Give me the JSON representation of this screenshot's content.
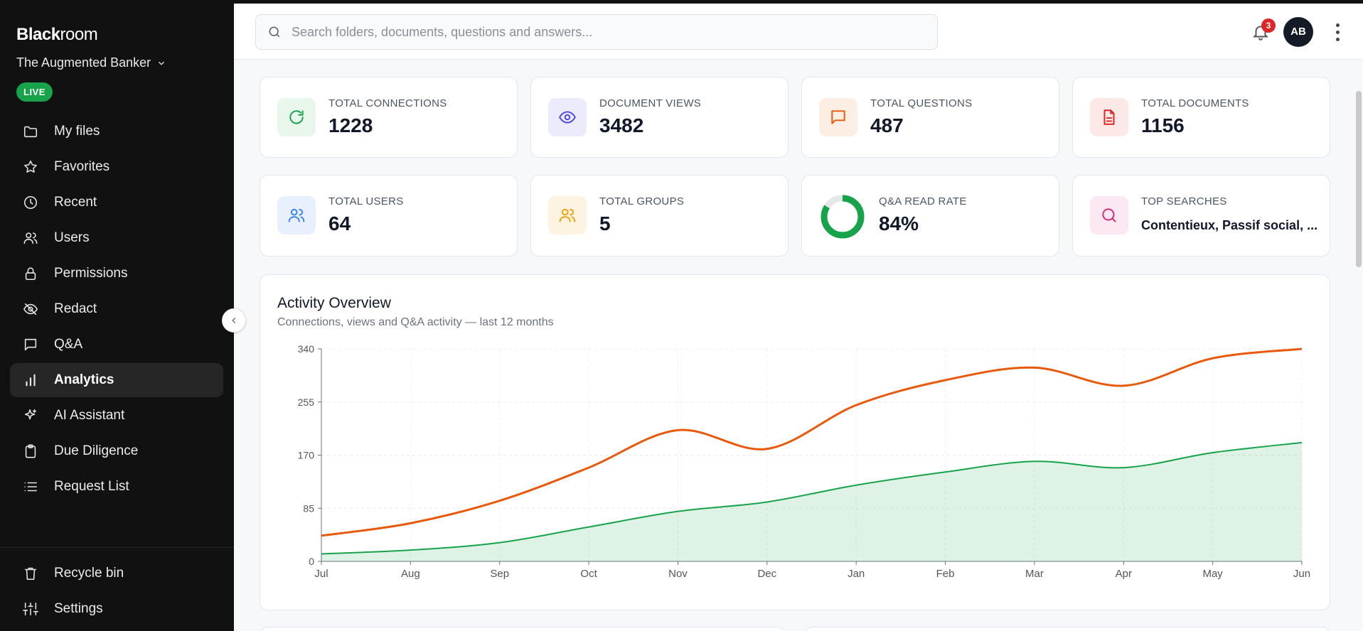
{
  "sidebar": {
    "brand_bold": "Black",
    "brand_light": "room",
    "workspace": "The Augmented Banker",
    "status_badge": "LIVE",
    "items": [
      {
        "label": "My files",
        "icon": "folder-icon"
      },
      {
        "label": "Favorites",
        "icon": "star-icon"
      },
      {
        "label": "Recent",
        "icon": "clock-icon"
      },
      {
        "label": "Users",
        "icon": "users-icon"
      },
      {
        "label": "Permissions",
        "icon": "lock-icon"
      },
      {
        "label": "Redact",
        "icon": "eye-off-icon"
      },
      {
        "label": "Q&A",
        "icon": "message-icon"
      },
      {
        "label": "Analytics",
        "icon": "bar-chart-icon",
        "active": true
      },
      {
        "label": "AI Assistant",
        "icon": "sparkles-icon"
      },
      {
        "label": "Due Diligence",
        "icon": "clipboard-icon"
      },
      {
        "label": "Request List",
        "icon": "list-icon"
      }
    ],
    "bottom_items": [
      {
        "label": "Recycle bin",
        "icon": "trash-icon"
      },
      {
        "label": "Settings",
        "icon": "sliders-icon"
      }
    ]
  },
  "topbar": {
    "search_placeholder": "Search folders, documents, questions and answers...",
    "notification_count": "3",
    "avatar_initials": "AB"
  },
  "stats": [
    {
      "label": "TOTAL CONNECTIONS",
      "value": "1228",
      "icon": "refresh-icon",
      "color": "#16a34a",
      "bg": "#e8f6ec"
    },
    {
      "label": "DOCUMENT VIEWS",
      "value": "3482",
      "icon": "eye-icon",
      "color": "#4f46e5",
      "bg": "#ecebfc"
    },
    {
      "label": "TOTAL QUESTIONS",
      "value": "487",
      "icon": "message-icon",
      "color": "#ea580c",
      "bg": "#fdeee4"
    },
    {
      "label": "TOTAL DOCUMENTS",
      "value": "1156",
      "icon": "file-icon",
      "color": "#dc2626",
      "bg": "#fde8e8"
    },
    {
      "label": "TOTAL USERS",
      "value": "64",
      "icon": "users-icon",
      "color": "#3b82f6",
      "bg": "#e8f0fd"
    },
    {
      "label": "TOTAL GROUPS",
      "value": "5",
      "icon": "users-icon",
      "color": "#f59e0b",
      "bg": "#fdf3e1"
    },
    {
      "label": "Q&A READ RATE",
      "value": "84%",
      "icon": "donut-icon",
      "color": "#16a34a",
      "rate": 0.84
    },
    {
      "label": "TOP SEARCHES",
      "value": "Contentieux, Passif social, ...",
      "icon": "search-icon",
      "color": "#db2777",
      "bg": "#fce8f2"
    }
  ],
  "chart": {
    "title": "Activity Overview",
    "subtitle": "Connections, views and Q&A activity — last 12 months"
  },
  "chart_data": {
    "type": "line",
    "categories": [
      "Jul",
      "Aug",
      "Sep",
      "Oct",
      "Nov",
      "Dec",
      "Jan",
      "Feb",
      "Mar",
      "Apr",
      "May",
      "Jun"
    ],
    "yticks": [
      "0",
      "85",
      "170",
      "255",
      "340"
    ],
    "ylim": [
      0,
      340
    ],
    "grid": true,
    "series": [
      {
        "values": [
          41,
          61,
          97,
          150,
          210,
          180,
          250,
          290,
          310,
          281,
          325,
          340
        ],
        "color": "#e8590c",
        "fill": false
      },
      {
        "values": [
          12,
          18,
          30,
          55,
          80,
          95,
          122,
          143,
          160,
          150,
          174,
          190
        ],
        "color": "#16a34a",
        "fill": true
      }
    ]
  }
}
